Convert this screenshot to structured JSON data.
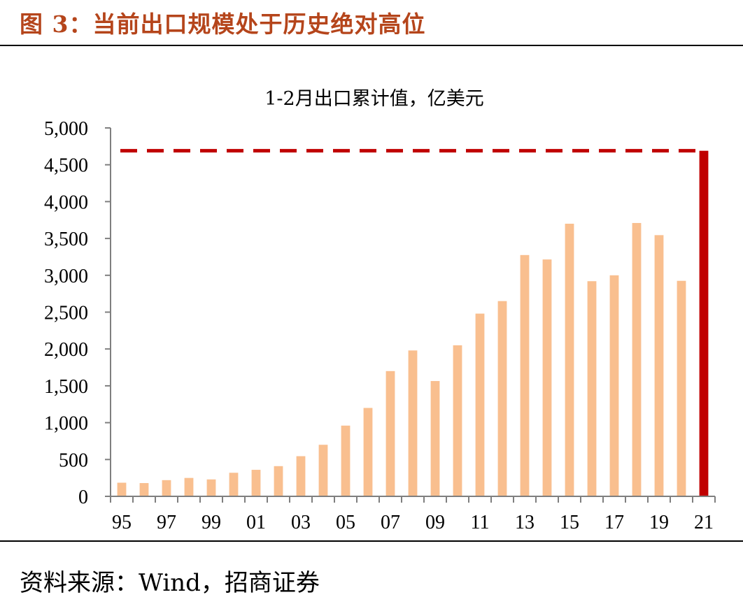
{
  "figure": {
    "title": "图 3：当前出口规模处于历史绝对高位",
    "source": "资料来源：Wind，招商证券"
  },
  "colors": {
    "bar": "#F9BF8F",
    "highlight": "#C00000",
    "title": "#B5451B"
  },
  "chart_data": {
    "type": "bar",
    "title": "1-2月出口累计值，亿美元",
    "xlabel": "",
    "ylabel": "",
    "categories": [
      "95",
      "96",
      "97",
      "98",
      "99",
      "00",
      "01",
      "02",
      "03",
      "04",
      "05",
      "06",
      "07",
      "08",
      "09",
      "10",
      "11",
      "12",
      "13",
      "14",
      "15",
      "16",
      "17",
      "18",
      "19",
      "20",
      "21"
    ],
    "tick_labels": [
      "95",
      "",
      "97",
      "",
      "99",
      "",
      "01",
      "",
      "03",
      "",
      "05",
      "",
      "07",
      "",
      "09",
      "",
      "11",
      "",
      "13",
      "",
      "15",
      "",
      "17",
      "",
      "19",
      "",
      "21"
    ],
    "values": [
      185,
      180,
      220,
      250,
      230,
      320,
      360,
      410,
      545,
      700,
      960,
      1200,
      1700,
      1980,
      1565,
      2050,
      2480,
      2650,
      3275,
      3215,
      3700,
      2920,
      3000,
      3710,
      3545,
      2925,
      4690
    ],
    "highlight_index": 26,
    "reference_line": 4690,
    "yticks": [
      "0",
      "500",
      "1,000",
      "1,500",
      "2,000",
      "2,500",
      "3,000",
      "3,500",
      "4,000",
      "4,500",
      "5,000"
    ],
    "ylim": [
      0,
      5000
    ]
  }
}
